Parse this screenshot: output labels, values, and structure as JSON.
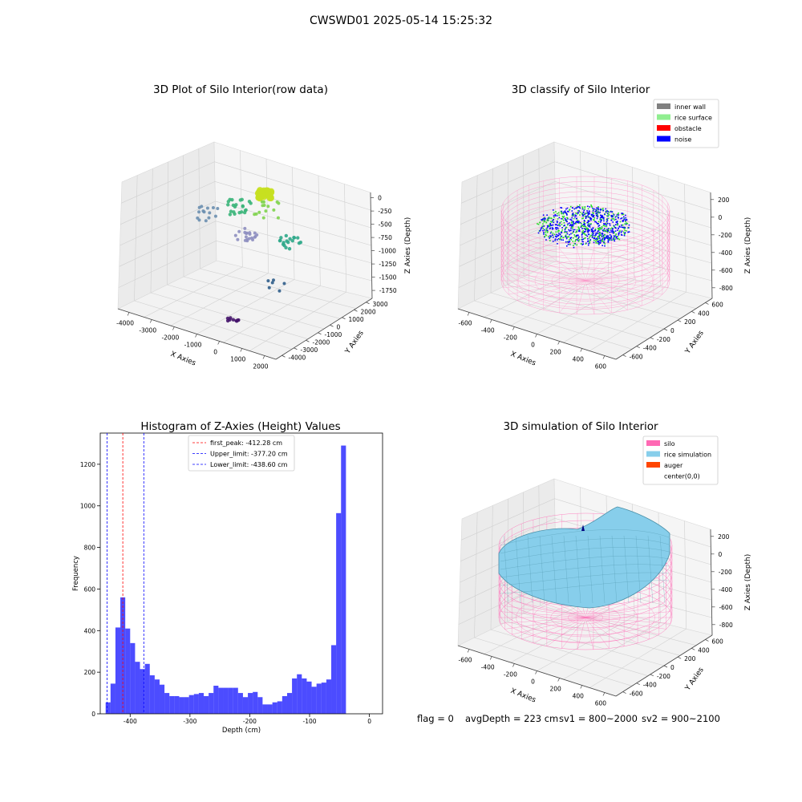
{
  "suptitle": "CWSWD01 2025-05-14 15:25:32",
  "panels": {
    "raw": {
      "title": "3D Plot of Silo Interior(row data)",
      "xlabel": "X Axies",
      "ylabel": "Y Axies",
      "zlabel": "Z Axies (Depth)",
      "xticks": [
        "-4000",
        "-3000",
        "-2000",
        "-1000",
        "0",
        "1000",
        "2000"
      ],
      "yticks": [
        "3000",
        "2000",
        "1000",
        "0",
        "-1000",
        "-2000",
        "-3000",
        "-4000"
      ],
      "zticks": [
        "0",
        "-250",
        "-500",
        "-750",
        "-1000",
        "-1250",
        "-1500",
        "-1750"
      ]
    },
    "classify": {
      "title": "3D classify of Silo Interior",
      "xlabel": "X Axies",
      "ylabel": "Y Axies",
      "zlabel": "Z Axies (Depth)",
      "xticks": [
        "-600",
        "-400",
        "-200",
        "0",
        "200",
        "400",
        "600"
      ],
      "yticks": [
        "600",
        "400",
        "200",
        "0",
        "-200",
        "-400",
        "-600"
      ],
      "zticks": [
        "200",
        "0",
        "-200",
        "-400",
        "-600",
        "-800"
      ],
      "legend": [
        {
          "label": "inner wall",
          "color": "#808080"
        },
        {
          "label": "rice surface",
          "color": "#90ee90"
        },
        {
          "label": "obstacle",
          "color": "#ff0000"
        },
        {
          "label": "noise",
          "color": "#0000ff"
        }
      ]
    },
    "simulation": {
      "title": "3D simulation of Silo Interior",
      "xlabel": "X Axies",
      "ylabel": "Y Axies",
      "zlabel": "Z Axies (Depth)",
      "xticks": [
        "-600",
        "-400",
        "-200",
        "0",
        "200",
        "400",
        "600"
      ],
      "yticks": [
        "600",
        "400",
        "200",
        "0",
        "-200",
        "-400",
        "-600"
      ],
      "zticks": [
        "200",
        "0",
        "-200",
        "-400",
        "-600",
        "-800"
      ],
      "legend": [
        {
          "label": "silo",
          "color": "#ff69b4"
        },
        {
          "label": "rice simulation",
          "color": "#87ceeb"
        },
        {
          "label": "auger",
          "color": "#ff4500"
        },
        {
          "label": "center(0,0)",
          "color": "#ffffff"
        }
      ]
    }
  },
  "footer": {
    "flag": "flag = 0",
    "avg": "avgDepth = 223 cm",
    "sv1": "sv1 = 800~2000",
    "sv2": "sv2 = 900~2100"
  },
  "chart_data": {
    "type": "bar",
    "title": "Histogram of Z-Axies (Height) Values",
    "xlabel": "Depth (cm)",
    "ylabel": "Frequency",
    "xlim": [
      -450,
      22
    ],
    "ylim": [
      0,
      1350
    ],
    "xticks": [
      -400,
      -300,
      -200,
      -100,
      0
    ],
    "yticks": [
      0,
      200,
      400,
      600,
      800,
      1000,
      1200
    ],
    "bar_color": "#0000ff",
    "bin_start": -441,
    "bin_width": 8.2,
    "values": [
      55,
      145,
      415,
      560,
      410,
      340,
      250,
      215,
      240,
      185,
      165,
      140,
      100,
      85,
      85,
      80,
      80,
      90,
      95,
      100,
      85,
      100,
      135,
      125,
      125,
      125,
      125,
      100,
      80,
      100,
      105,
      80,
      45,
      45,
      55,
      60,
      85,
      100,
      170,
      190,
      170,
      155,
      130,
      145,
      150,
      165,
      330,
      965,
      1290
    ],
    "lines": [
      {
        "label": "first_peak: -412.28 cm",
        "x": -412.28,
        "color": "#ff0000"
      },
      {
        "label": "Upper_limit: -377.20 cm",
        "x": -377.2,
        "color": "#0000ff"
      },
      {
        "label": "Lower_limit: -438.60 cm",
        "x": -438.6,
        "color": "#0000ff"
      }
    ],
    "legend_position": "upper center"
  }
}
